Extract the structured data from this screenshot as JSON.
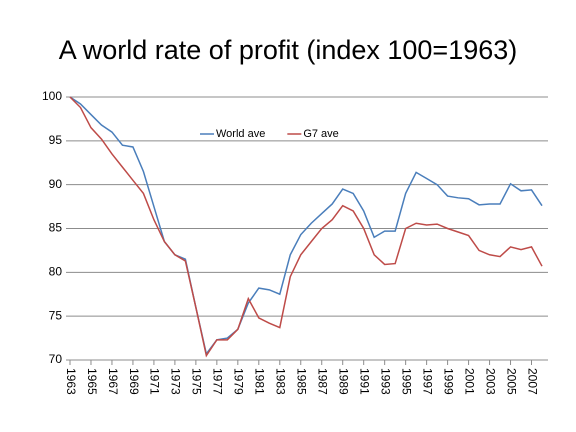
{
  "chart_data": {
    "type": "line",
    "title": "A world rate of profit (index 100=1963)",
    "x": [
      1963,
      1964,
      1965,
      1966,
      1967,
      1968,
      1969,
      1970,
      1971,
      1972,
      1973,
      1974,
      1975,
      1976,
      1977,
      1978,
      1979,
      1980,
      1981,
      1982,
      1983,
      1984,
      1985,
      1986,
      1987,
      1988,
      1989,
      1990,
      1991,
      1992,
      1993,
      1994,
      1995,
      1996,
      1997,
      1998,
      1999,
      2000,
      2001,
      2002,
      2003,
      2004,
      2005,
      2006,
      2007,
      2008
    ],
    "series": [
      {
        "name": "World ave",
        "color": "#4a7ebb",
        "values": [
          100,
          99.2,
          98,
          96.8,
          96,
          94.5,
          94.3,
          91.5,
          87.5,
          83.5,
          82,
          81.5,
          76,
          70.7,
          72.3,
          72.5,
          73.5,
          76.5,
          78.2,
          78,
          77.5,
          82,
          84.3,
          85.6,
          86.7,
          87.8,
          89.5,
          89,
          87,
          84,
          84.7,
          84.7,
          89,
          91.4,
          90.7,
          90,
          88.7,
          88.5,
          88.4,
          87.7,
          87.8,
          87.8,
          90.1,
          89.3,
          89.4,
          87.6
        ]
      },
      {
        "name": "G7 ave",
        "color": "#be4b48",
        "values": [
          100,
          98.8,
          96.5,
          95.2,
          93.5,
          92,
          90.5,
          89,
          86,
          83.5,
          82,
          81.3,
          76,
          70.5,
          72.3,
          72.3,
          73.5,
          77,
          74.8,
          74.2,
          73.7,
          79.5,
          82,
          83.5,
          85,
          86,
          87.6,
          87,
          85,
          82,
          80.9,
          81,
          85,
          85.6,
          85.4,
          85.5,
          85,
          84.6,
          84.2,
          82.5,
          82,
          81.8,
          82.9,
          82.6,
          82.9,
          80.7
        ]
      }
    ],
    "xlim": [
      1963,
      2008
    ],
    "xticks": [
      1963,
      1965,
      1967,
      1969,
      1971,
      1973,
      1975,
      1977,
      1979,
      1981,
      1983,
      1985,
      1987,
      1989,
      1991,
      1993,
      1995,
      1997,
      1999,
      2001,
      2003,
      2005,
      2007
    ],
    "ylim": [
      70,
      100
    ],
    "yticks": [
      70,
      75,
      80,
      85,
      90,
      95,
      100
    ],
    "grid": true,
    "legend": "top"
  }
}
